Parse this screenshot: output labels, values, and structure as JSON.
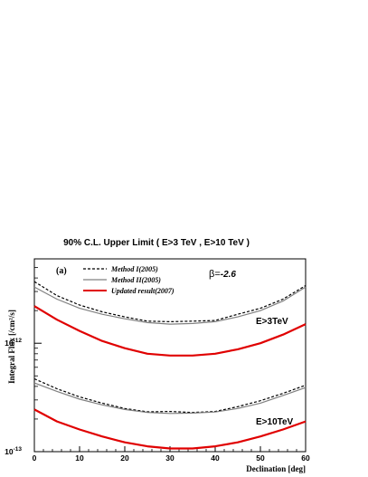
{
  "chart_data": {
    "type": "line",
    "title": "90% C.L. Upper Limit ( E>3 TeV , E>10 TeV )",
    "xlabel": "Declination [deg]",
    "ylabel": "Integral Flux [/cm²/s]",
    "xlim": [
      0,
      60
    ],
    "ylim": [
      1e-13,
      6e-12
    ],
    "yscale": "log",
    "grid": false,
    "panel_label": "(a)",
    "beta_label": "β=",
    "beta_value": "-2.6",
    "x_ticks": [
      0,
      10,
      20,
      30,
      40,
      50,
      60
    ],
    "y_tick_labels": [
      {
        "value": 1e-12,
        "label": "10",
        "exp": "-12"
      },
      {
        "value": 1e-13,
        "label": "10",
        "exp": "-13"
      }
    ],
    "legend": {
      "position": "top-center",
      "entries": [
        {
          "label": "Method I(2005)",
          "color": "#000000",
          "style": "dashed"
        },
        {
          "label": "Method II(2005)",
          "color": "#808080",
          "style": "solid"
        },
        {
          "label": "Updated result(2007)",
          "color": "#e00000",
          "style": "solid"
        }
      ]
    },
    "annotations": [
      {
        "text": "E>3TeV",
        "x": 50,
        "y": 1.05e-12
      },
      {
        "text": "E>10TeV",
        "x": 50,
        "y": 1.7e-13
      }
    ],
    "x": [
      0,
      5,
      10,
      15,
      20,
      25,
      30,
      35,
      40,
      45,
      50,
      55,
      60
    ],
    "series": [
      {
        "name": "Method I(2005)",
        "group": "E>3TeV",
        "color": "#000000",
        "dash": "3,2",
        "width": 1.2,
        "values": [
          3.7e-12,
          2.75e-12,
          2.25e-12,
          1.95e-12,
          1.75e-12,
          1.6e-12,
          1.58e-12,
          1.6e-12,
          1.62e-12,
          1.85e-12,
          2.1e-12,
          2.55e-12,
          3.4e-12
        ]
      },
      {
        "name": "Method II(2005)",
        "group": "E>3TeV",
        "color": "#808080",
        "dash": "",
        "width": 1.2,
        "values": [
          3.3e-12,
          2.55e-12,
          2.1e-12,
          1.85e-12,
          1.68e-12,
          1.55e-12,
          1.5e-12,
          1.52e-12,
          1.58e-12,
          1.75e-12,
          2e-12,
          2.45e-12,
          3.3e-12
        ]
      },
      {
        "name": "Updated result(2007)",
        "group": "E>3TeV",
        "color": "#e00000",
        "dash": "",
        "width": 2.2,
        "values": [
          2.2e-12,
          1.65e-12,
          1.3e-12,
          1.05e-12,
          9e-13,
          8e-13,
          7.7e-13,
          7.7e-13,
          8e-13,
          8.8e-13,
          1e-12,
          1.2e-12,
          1.5e-12
        ]
      },
      {
        "name": "Method I(2005)",
        "group": "E>10TeV",
        "color": "#000000",
        "dash": "3,2",
        "width": 1.2,
        "values": [
          4.7e-13,
          3.8e-13,
          3.2e-13,
          2.8e-13,
          2.5e-13,
          2.33e-13,
          2.35e-13,
          2.3e-13,
          2.35e-13,
          2.6e-13,
          2.95e-13,
          3.45e-13,
          4.1e-13
        ]
      },
      {
        "name": "Method II(2005)",
        "group": "E>10TeV",
        "color": "#808080",
        "dash": "",
        "width": 1.2,
        "values": [
          4.3e-13,
          3.6e-13,
          3.05e-13,
          2.7e-13,
          2.45e-13,
          2.3e-13,
          2.25e-13,
          2.27e-13,
          2.32e-13,
          2.5e-13,
          2.8e-13,
          3.3e-13,
          3.9e-13
        ]
      },
      {
        "name": "Updated result(2007)",
        "group": "E>10TeV",
        "color": "#e00000",
        "dash": "",
        "width": 2.2,
        "values": [
          2.45e-13,
          1.9e-13,
          1.6e-13,
          1.38e-13,
          1.22e-13,
          1.12e-13,
          1.07e-13,
          1.07e-13,
          1.12e-13,
          1.22e-13,
          1.38e-13,
          1.6e-13,
          1.9e-13
        ]
      }
    ]
  }
}
